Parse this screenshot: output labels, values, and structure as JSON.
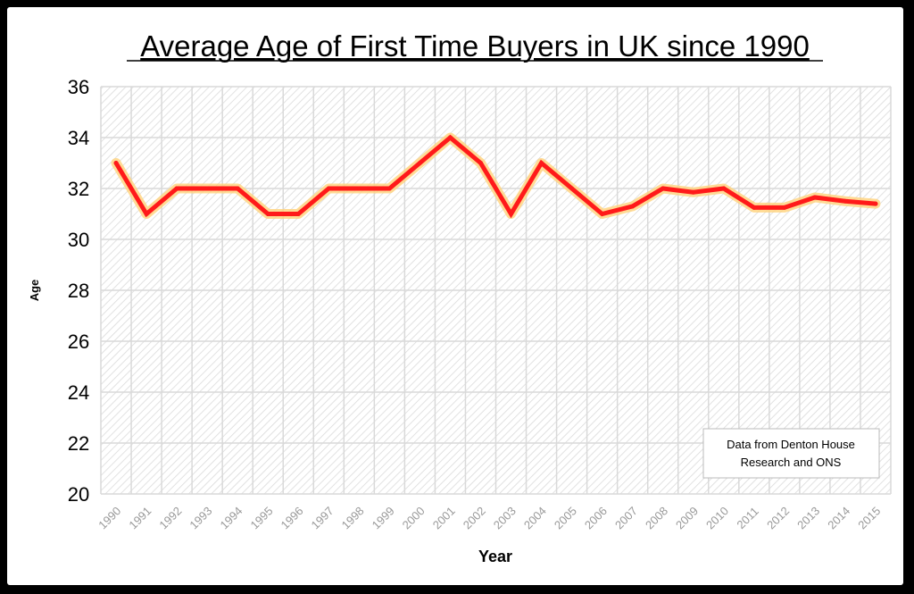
{
  "chart_data": {
    "type": "line",
    "title": "Average Age of First Time Buyers in UK since 1990",
    "xlabel": "Year",
    "ylabel": "Age",
    "ylim": [
      20,
      36
    ],
    "yticks": [
      20,
      22,
      24,
      26,
      28,
      30,
      32,
      34,
      36
    ],
    "grid": true,
    "categories": [
      "1990",
      "1991",
      "1992",
      "1993",
      "1994",
      "1995",
      "1996",
      "1997",
      "1998",
      "1999",
      "2000",
      "2001",
      "2002",
      "2003",
      "2004",
      "2005",
      "2006",
      "2007",
      "2008",
      "2009",
      "2010",
      "2011",
      "2012",
      "2013",
      "2014",
      "2015"
    ],
    "values": [
      33,
      31,
      32,
      32,
      32,
      31,
      31,
      32,
      32,
      32,
      33,
      34,
      33,
      31,
      33,
      32,
      31,
      31.3,
      32,
      31.85,
      32,
      31.25,
      31.25,
      31.65,
      31.5,
      31.4
    ],
    "line_color": "#ff1a1a",
    "glow_color": "#ffd27a",
    "annotation": "Data from Denton House Research and ONS",
    "annotation_lines": [
      "Data from Denton House",
      "Research and ONS"
    ]
  }
}
